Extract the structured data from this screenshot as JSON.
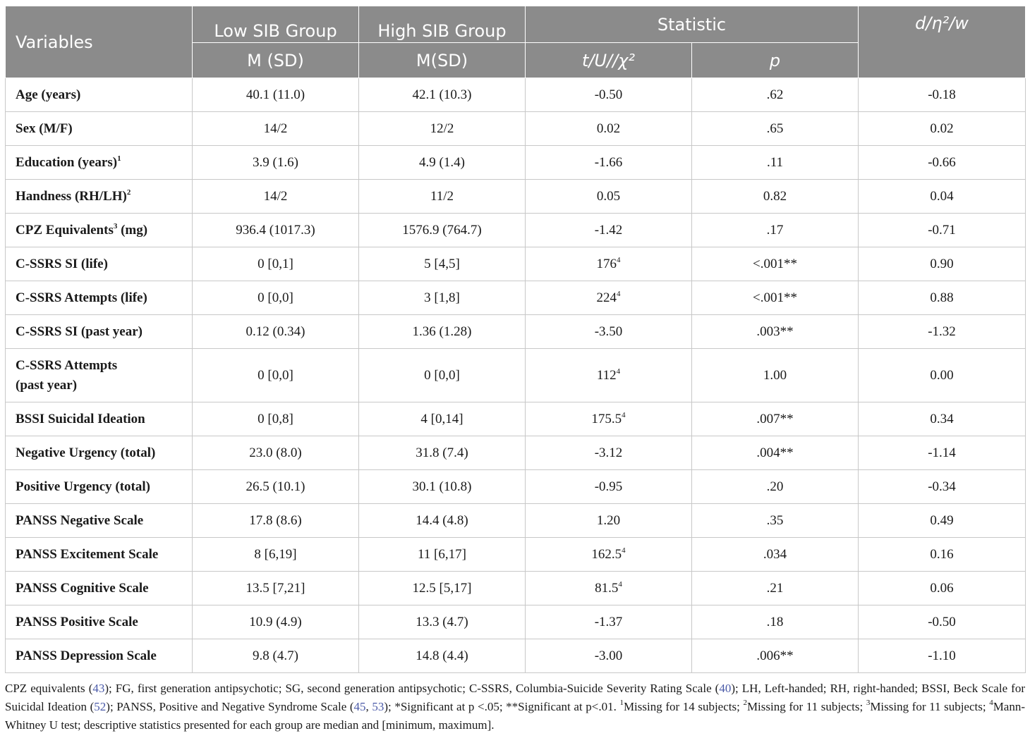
{
  "header": {
    "variables": "Variables",
    "low_group": "Low SIB Group",
    "high_group": "High SIB Group",
    "statistic": "Statistic",
    "effect": "d/η²/w",
    "low_sub": "M (SD)",
    "high_sub": "M(SD)",
    "stat_sub": "t/U//χ²",
    "p_sub": "p"
  },
  "rows": [
    {
      "variable": "Age (years)",
      "low": "40.1 (11.0)",
      "high": "42.1 (10.3)",
      "stat": "-0.50",
      "p": ".62",
      "effect": "-0.18"
    },
    {
      "variable": "Sex (M/F)",
      "low": "14/2",
      "high": "12/2",
      "stat": "0.02",
      "p": ".65",
      "effect": "0.02"
    },
    {
      "variable": "Education (years)",
      "variable_sup": "1",
      "low": "3.9 (1.6)",
      "high": "4.9 (1.4)",
      "stat": "-1.66",
      "p": ".11",
      "effect": "-0.66"
    },
    {
      "variable": "Handness (RH/LH)",
      "variable_sup": "2",
      "low": "14/2",
      "high": "11/2",
      "stat": "0.05",
      "p": "0.82",
      "effect": "0.04"
    },
    {
      "variable": "CPZ Equivalents",
      "variable_sup": "3",
      "variable_suffix": " (mg)",
      "low": "936.4 (1017.3)",
      "high": "1576.9 (764.7)",
      "stat": "-1.42",
      "p": ".17",
      "effect": "-0.71"
    },
    {
      "variable": "C-SSRS SI (life)",
      "low": "0 [0,1]",
      "high": "5 [4,5]",
      "stat": "176",
      "stat_sup": "4",
      "p": "<.001**",
      "effect": "0.90"
    },
    {
      "variable": "C-SSRS Attempts (life)",
      "low": "0 [0,0]",
      "high": "3 [1,8]",
      "stat": "224",
      "stat_sup": "4",
      "p": "<.001**",
      "effect": "0.88"
    },
    {
      "variable": "C-SSRS SI (past year)",
      "low": "0.12 (0.34)",
      "high": "1.36 (1.28)",
      "stat": "-3.50",
      "p": ".003**",
      "effect": "-1.32"
    },
    {
      "variable": "C-SSRS Attempts",
      "variable_line2": "(past year)",
      "low": "0 [0,0]",
      "high": "0 [0,0]",
      "stat": "112",
      "stat_sup": "4",
      "p": "1.00",
      "effect": "0.00"
    },
    {
      "variable": "BSSI Suicidal Ideation",
      "low": "0 [0,8]",
      "high": "4 [0,14]",
      "stat": "175.5",
      "stat_sup": "4",
      "p": ".007**",
      "effect": "0.34"
    },
    {
      "variable": "Negative Urgency (total)",
      "low": "23.0 (8.0)",
      "high": "31.8 (7.4)",
      "stat": "-3.12",
      "p": ".004**",
      "effect": "-1.14"
    },
    {
      "variable": "Positive Urgency (total)",
      "low": "26.5 (10.1)",
      "high": "30.1 (10.8)",
      "stat": "-0.95",
      "p": ".20",
      "effect": "-0.34"
    },
    {
      "variable": "PANSS Negative Scale",
      "low": "17.8 (8.6)",
      "high": "14.4 (4.8)",
      "stat": "1.20",
      "p": ".35",
      "effect": "0.49"
    },
    {
      "variable": "PANSS Excitement Scale",
      "low": "8 [6,19]",
      "high": "11 [6,17]",
      "stat": "162.5",
      "stat_sup": "4",
      "p": ".034",
      "effect": "0.16"
    },
    {
      "variable": "PANSS Cognitive Scale",
      "low": "13.5 [7,21]",
      "high": "12.5 [5,17]",
      "stat": "81.5",
      "stat_sup": "4",
      "p": ".21",
      "effect": "0.06"
    },
    {
      "variable": "PANSS Positive Scale",
      "low": "10.9 (4.9)",
      "high": "13.3 (4.7)",
      "stat": "-1.37",
      "p": ".18",
      "effect": "-0.50"
    },
    {
      "variable": "PANSS Depression Scale",
      "low": "9.8 (4.7)",
      "high": "14.8 (4.4)",
      "stat": "-3.00",
      "p": ".006**",
      "effect": "-1.10"
    }
  ],
  "footnote": {
    "t1": "CPZ equivalents (",
    "r1": "43",
    "t2": "); FG, first generation antipsychotic; SG, second generation antipsychotic; C-SSRS, Columbia-Suicide Severity Rating Scale (",
    "r2": "40",
    "t3": "); LH, Left-handed; RH, right-handed; BSSI, Beck Scale for Suicidal Ideation (",
    "r3": "52",
    "t4": "); PANSS, Positive and Negative Syndrome Scale (",
    "r4": "45",
    "t5": ", ",
    "r5": "53",
    "t6": "); *Significant at p <.05; **Significant at p<.01. ",
    "s1": "1",
    "t7": "Missing for 14 subjects; ",
    "s2": "2",
    "t8": "Missing for 11 subjects; ",
    "s3": "3",
    "t9": "Missing for 11 subjects; ",
    "s4": "4",
    "t10": "Mann-Whitney U test; descriptive statistics presented for each group are median and [minimum, maximum]."
  }
}
